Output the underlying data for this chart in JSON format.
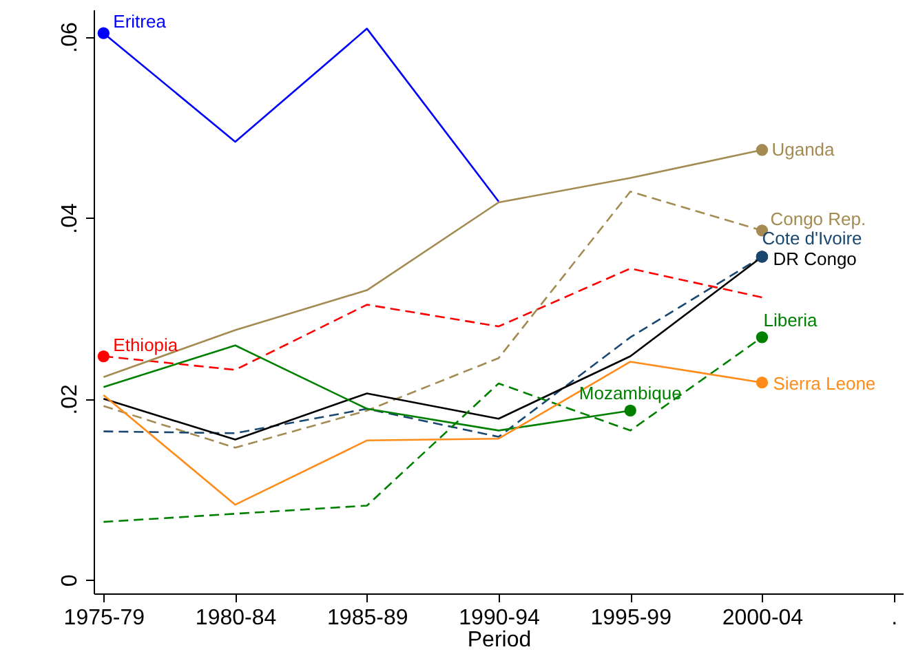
{
  "chart_data": {
    "type": "line",
    "xlabel": "Period",
    "categories": [
      "1975-79",
      "1980-84",
      "1985-89",
      "1990-94",
      "1995-99",
      "2000-04",
      "."
    ],
    "series": [
      {
        "color": "#0000ff",
        "line_style": "solid",
        "values": [
          0.0604,
          0.0484,
          0.0609,
          0.0418,
          null,
          null,
          null
        ]
      },
      {
        "color": "#ff0000",
        "line_style": "dashed",
        "values": [
          0.0247,
          0.0232,
          0.0304,
          0.028,
          0.0344,
          0.0312,
          null
        ]
      },
      {
        "color": "#a38b52",
        "line_style": "solid",
        "values": [
          0.0224,
          0.0276,
          0.032,
          0.0417,
          0.0444,
          0.0475,
          null
        ]
      },
      {
        "color": "#a38b52",
        "line_style": "dashed",
        "values": [
          0.0192,
          0.0146,
          0.0187,
          0.0245,
          0.0429,
          0.0386,
          null
        ]
      },
      {
        "color": "#1a476f",
        "line_style": "dashed",
        "values": [
          0.0164,
          0.0162,
          0.0189,
          0.0158,
          0.0268,
          0.0357,
          null
        ]
      },
      {
        "color": "#000000",
        "line_style": "solid",
        "values": [
          0.02,
          0.0155,
          0.0206,
          0.0178,
          0.0247,
          0.0357,
          null
        ]
      },
      {
        "color": "#008000",
        "line_style": "solid",
        "values": [
          0.0213,
          0.0259,
          0.0189,
          0.0165,
          0.0187,
          null,
          null
        ]
      },
      {
        "color": "#008000",
        "line_style": "dashed",
        "values": [
          0.0064,
          0.0073,
          0.0082,
          0.0217,
          0.0165,
          0.0268,
          null
        ]
      },
      {
        "color": "#ff8c1a",
        "line_style": "solid",
        "values": [
          0.0204,
          0.0083,
          0.0154,
          0.0156,
          0.0241,
          0.0218,
          null
        ]
      }
    ],
    "annotations": [
      {
        "text": "Eritrea",
        "x": "1975-79",
        "y": 0.0604
      },
      {
        "text": "Ethiopia",
        "x": "1975-79",
        "y": 0.0247
      },
      {
        "text": "Uganda",
        "x": "2000-04",
        "y": 0.0475
      },
      {
        "text": "Congo Rep.",
        "x": "2000-04",
        "y": 0.0386
      },
      {
        "text": "Cote d'Ivoire",
        "x": "2000-04",
        "y": 0.0357
      },
      {
        "text": "DR Congo",
        "x": "2000-04",
        "y": 0.0357
      },
      {
        "text": "Mozambique",
        "x": "1995-99",
        "y": 0.0187
      },
      {
        "text": "Liberia",
        "x": "2000-04",
        "y": 0.0268
      },
      {
        "text": "Sierra Leone",
        "x": "2000-04",
        "y": 0.0218
      }
    ],
    "ylim": [
      -0.0015,
      0.063
    ],
    "yticks": [
      {
        "value": 0,
        "label": "0"
      },
      {
        "value": 0.02,
        "label": ".02"
      },
      {
        "value": 0.04,
        "label": ".04"
      },
      {
        "value": 0.06,
        "label": ".06"
      }
    ],
    "grid": false,
    "marker": "none"
  }
}
